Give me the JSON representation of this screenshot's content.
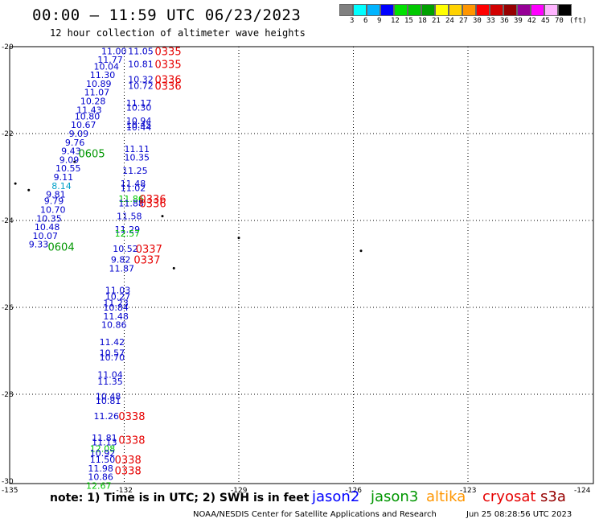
{
  "header": {
    "title": "00:00 — 11:59 UTC 06/23/2023",
    "subtitle": "12 hour collection of altimeter wave heights"
  },
  "legend": {
    "unit": "(ft)",
    "colors": [
      "#808080",
      "#00ffff",
      "#00b4ff",
      "#0000ff",
      "#00e100",
      "#00c800",
      "#00a000",
      "#ffff00",
      "#ffd200",
      "#ff9600",
      "#ff0000",
      "#d20000",
      "#960000",
      "#960096",
      "#ff00ff",
      "#ffb4ff",
      "#000000"
    ],
    "ticks": [
      "3",
      "6",
      "9",
      "12",
      "15",
      "18",
      "21",
      "24",
      "27",
      "30",
      "33",
      "36",
      "39",
      "42",
      "45",
      "70"
    ]
  },
  "map": {
    "lon_ticks": [
      "-135",
      "-132",
      "-129",
      "-126",
      "-123",
      "-124"
    ],
    "lat_ticks": [
      "-20",
      "-22",
      "-24",
      "-26",
      "-28",
      "-30"
    ]
  },
  "wave_labels": [
    {
      "text": "11.00",
      "lon": -132.6,
      "lat": -20.1,
      "color": "#0000cc"
    },
    {
      "text": "11.77",
      "lon": -132.7,
      "lat": -20.3,
      "color": "#0000cc"
    },
    {
      "text": "10.04",
      "lon": -132.8,
      "lat": -20.45,
      "color": "#0000cc"
    },
    {
      "text": "11.30",
      "lon": -132.9,
      "lat": -20.65,
      "color": "#0000cc"
    },
    {
      "text": "10.89",
      "lon": -133.0,
      "lat": -20.85,
      "color": "#0000cc"
    },
    {
      "text": "11.07",
      "lon": -133.05,
      "lat": -21.05,
      "color": "#0000cc"
    },
    {
      "text": "10.28",
      "lon": -133.15,
      "lat": -21.25,
      "color": "#0000cc"
    },
    {
      "text": "11.43",
      "lon": -133.25,
      "lat": -21.45,
      "color": "#0000cc"
    },
    {
      "text": "10.80",
      "lon": -133.3,
      "lat": -21.6,
      "color": "#0000cc"
    },
    {
      "text": "10.67",
      "lon": -133.4,
      "lat": -21.8,
      "color": "#0000cc"
    },
    {
      "text": "9.09",
      "lon": -133.45,
      "lat": -22.0,
      "color": "#0000cc"
    },
    {
      "text": "9.76",
      "lon": -133.55,
      "lat": -22.2,
      "color": "#0000cc"
    },
    {
      "text": "9.43",
      "lon": -133.65,
      "lat": -22.4,
      "color": "#0000cc"
    },
    {
      "text": "9.09",
      "lon": -133.7,
      "lat": -22.6,
      "color": "#0000cc"
    },
    {
      "text": "10.55",
      "lon": -133.8,
      "lat": -22.8,
      "color": "#0000cc"
    },
    {
      "text": "9.11",
      "lon": -133.85,
      "lat": -23.0,
      "color": "#0000cc"
    },
    {
      "text": "8.14",
      "lon": -133.9,
      "lat": -23.2,
      "color": "#00a0c8"
    },
    {
      "text": "9.81",
      "lon": -134.05,
      "lat": -23.4,
      "color": "#0000cc"
    },
    {
      "text": "9.79",
      "lon": -134.1,
      "lat": -23.55,
      "color": "#0000cc"
    },
    {
      "text": "10.70",
      "lon": -134.2,
      "lat": -23.75,
      "color": "#0000cc"
    },
    {
      "text": "10.35",
      "lon": -134.3,
      "lat": -23.95,
      "color": "#0000cc"
    },
    {
      "text": "10.48",
      "lon": -134.35,
      "lat": -24.15,
      "color": "#0000cc"
    },
    {
      "text": "10.07",
      "lon": -134.4,
      "lat": -24.35,
      "color": "#0000cc"
    },
    {
      "text": "9.33",
      "lon": -134.5,
      "lat": -24.55,
      "color": "#0000cc"
    },
    {
      "text": "11.05",
      "lon": -131.9,
      "lat": -20.1,
      "color": "#0000cc"
    },
    {
      "text": "10.81",
      "lon": -131.9,
      "lat": -20.4,
      "color": "#0000cc"
    },
    {
      "text": "10.32",
      "lon": -131.9,
      "lat": -20.75,
      "color": "#0000cc"
    },
    {
      "text": "10.72",
      "lon": -131.9,
      "lat": -20.9,
      "color": "#0000cc"
    },
    {
      "text": "11.17",
      "lon": -131.95,
      "lat": -21.3,
      "color": "#0000cc"
    },
    {
      "text": "10.30",
      "lon": -131.95,
      "lat": -21.4,
      "color": "#0000cc"
    },
    {
      "text": "10.94",
      "lon": -131.95,
      "lat": -21.7,
      "color": "#0000cc"
    },
    {
      "text": "10.45",
      "lon": -131.95,
      "lat": -21.8,
      "color": "#0000cc"
    },
    {
      "text": "10.44",
      "lon": -131.95,
      "lat": -21.85,
      "color": "#0000cc"
    },
    {
      "text": "11.11",
      "lon": -132.0,
      "lat": -22.35,
      "color": "#0000cc"
    },
    {
      "text": "10.35",
      "lon": -132.0,
      "lat": -22.55,
      "color": "#0000cc"
    },
    {
      "text": "11.25",
      "lon": -132.05,
      "lat": -22.85,
      "color": "#0000cc"
    },
    {
      "text": "11.48",
      "lon": -132.1,
      "lat": -23.15,
      "color": "#0000cc"
    },
    {
      "text": "11.02",
      "lon": -132.1,
      "lat": -23.25,
      "color": "#0000cc"
    },
    {
      "text": "11.86",
      "lon": -132.15,
      "lat": -23.5,
      "color": "#00c800"
    },
    {
      "text": "11.88",
      "lon": -132.15,
      "lat": -23.6,
      "color": "#0000cc"
    },
    {
      "text": "11.58",
      "lon": -132.2,
      "lat": -23.9,
      "color": "#0000cc"
    },
    {
      "text": "11.29",
      "lon": -132.25,
      "lat": -24.2,
      "color": "#0000cc"
    },
    {
      "text": "12.57",
      "lon": -132.25,
      "lat": -24.3,
      "color": "#00c800"
    },
    {
      "text": "10.52",
      "lon": -132.3,
      "lat": -24.65,
      "color": "#0000cc"
    },
    {
      "text": "9.82",
      "lon": -132.35,
      "lat": -24.9,
      "color": "#0000cc"
    },
    {
      "text": "11.87",
      "lon": -132.4,
      "lat": -25.1,
      "color": "#0000cc"
    },
    {
      "text": "11.03",
      "lon": -132.5,
      "lat": -25.6,
      "color": "#0000cc"
    },
    {
      "text": "10.27",
      "lon": -132.5,
      "lat": -25.75,
      "color": "#0000cc"
    },
    {
      "text": "11.23",
      "lon": -132.55,
      "lat": -25.9,
      "color": "#0000cc"
    },
    {
      "text": "10.84",
      "lon": -132.55,
      "lat": -26.0,
      "color": "#0000cc"
    },
    {
      "text": "11.48",
      "lon": -132.55,
      "lat": -26.2,
      "color": "#0000cc"
    },
    {
      "text": "10.86",
      "lon": -132.6,
      "lat": -26.4,
      "color": "#0000cc"
    },
    {
      "text": "11.42",
      "lon": -132.65,
      "lat": -26.8,
      "color": "#0000cc"
    },
    {
      "text": "10.57",
      "lon": -132.65,
      "lat": -27.05,
      "color": "#0000cc"
    },
    {
      "text": "10.70",
      "lon": -132.65,
      "lat": -27.15,
      "color": "#0000cc"
    },
    {
      "text": "11.04",
      "lon": -132.7,
      "lat": -27.55,
      "color": "#0000cc"
    },
    {
      "text": "11.35",
      "lon": -132.7,
      "lat": -27.7,
      "color": "#0000cc"
    },
    {
      "text": "10.48",
      "lon": -132.75,
      "lat": -28.05,
      "color": "#0000cc"
    },
    {
      "text": "10.81",
      "lon": -132.75,
      "lat": -28.15,
      "color": "#0000cc"
    },
    {
      "text": "11.26",
      "lon": -132.8,
      "lat": -28.5,
      "color": "#0000cc"
    },
    {
      "text": "11.81",
      "lon": -132.85,
      "lat": -29.0,
      "color": "#0000cc"
    },
    {
      "text": "11.13",
      "lon": -132.85,
      "lat": -29.1,
      "color": "#0000cc"
    },
    {
      "text": "12.08",
      "lon": -132.9,
      "lat": -29.25,
      "color": "#00c800"
    },
    {
      "text": "10.92",
      "lon": -132.9,
      "lat": -29.35,
      "color": "#0000cc"
    },
    {
      "text": "11.50",
      "lon": -132.9,
      "lat": -29.5,
      "color": "#0000cc"
    },
    {
      "text": "11.98",
      "lon": -132.95,
      "lat": -29.7,
      "color": "#0000cc"
    },
    {
      "text": "10.86",
      "lon": -132.95,
      "lat": -29.9,
      "color": "#0000cc"
    },
    {
      "text": "12.67",
      "lon": -133.0,
      "lat": -30.1,
      "color": "#00c800"
    }
  ],
  "time_labels": [
    {
      "text": "0335",
      "lon": -131.2,
      "lat": -20.1,
      "color": "#e60000"
    },
    {
      "text": "0335",
      "lon": -131.2,
      "lat": -20.4,
      "color": "#e60000"
    },
    {
      "text": "0336",
      "lon": -131.2,
      "lat": -20.75,
      "color": "#e60000"
    },
    {
      "text": "0336",
      "lon": -131.2,
      "lat": -20.9,
      "color": "#e60000"
    },
    {
      "text": "0605",
      "lon": -133.2,
      "lat": -22.45,
      "color": "#009600"
    },
    {
      "text": "0336",
      "lon": -131.6,
      "lat": -23.5,
      "color": "#e60000"
    },
    {
      "text": "0336",
      "lon": -131.6,
      "lat": -23.6,
      "color": "#e60000"
    },
    {
      "text": "0604",
      "lon": -134.0,
      "lat": -24.6,
      "color": "#009600"
    },
    {
      "text": "0337",
      "lon": -131.7,
      "lat": -24.65,
      "color": "#e60000"
    },
    {
      "text": "0337",
      "lon": -131.75,
      "lat": -24.9,
      "color": "#e60000"
    },
    {
      "text": "0338",
      "lon": -132.15,
      "lat": -28.5,
      "color": "#e60000"
    },
    {
      "text": "0338",
      "lon": -132.15,
      "lat": -29.05,
      "color": "#e60000"
    },
    {
      "text": "0338",
      "lon": -132.25,
      "lat": -29.5,
      "color": "#e60000"
    },
    {
      "text": "0338",
      "lon": -132.25,
      "lat": -29.75,
      "color": "#e60000"
    }
  ],
  "footer": {
    "note": "note: 1) Time is in UTC; 2) SWH is in feet",
    "satellites": [
      {
        "name": "jason2",
        "color": "#0000ff"
      },
      {
        "name": "jason3",
        "color": "#009600"
      },
      {
        "name": "altika",
        "color": "#ff9600"
      },
      {
        "name": "cryosat",
        "color": "#e60000"
      },
      {
        "name": "s3a",
        "color": "#960000"
      }
    ],
    "credit": "NOAA/NESDIS Center for Satellite Applications and Research",
    "timestamp": "Jun 25 08:28:56 UTC 2023"
  }
}
